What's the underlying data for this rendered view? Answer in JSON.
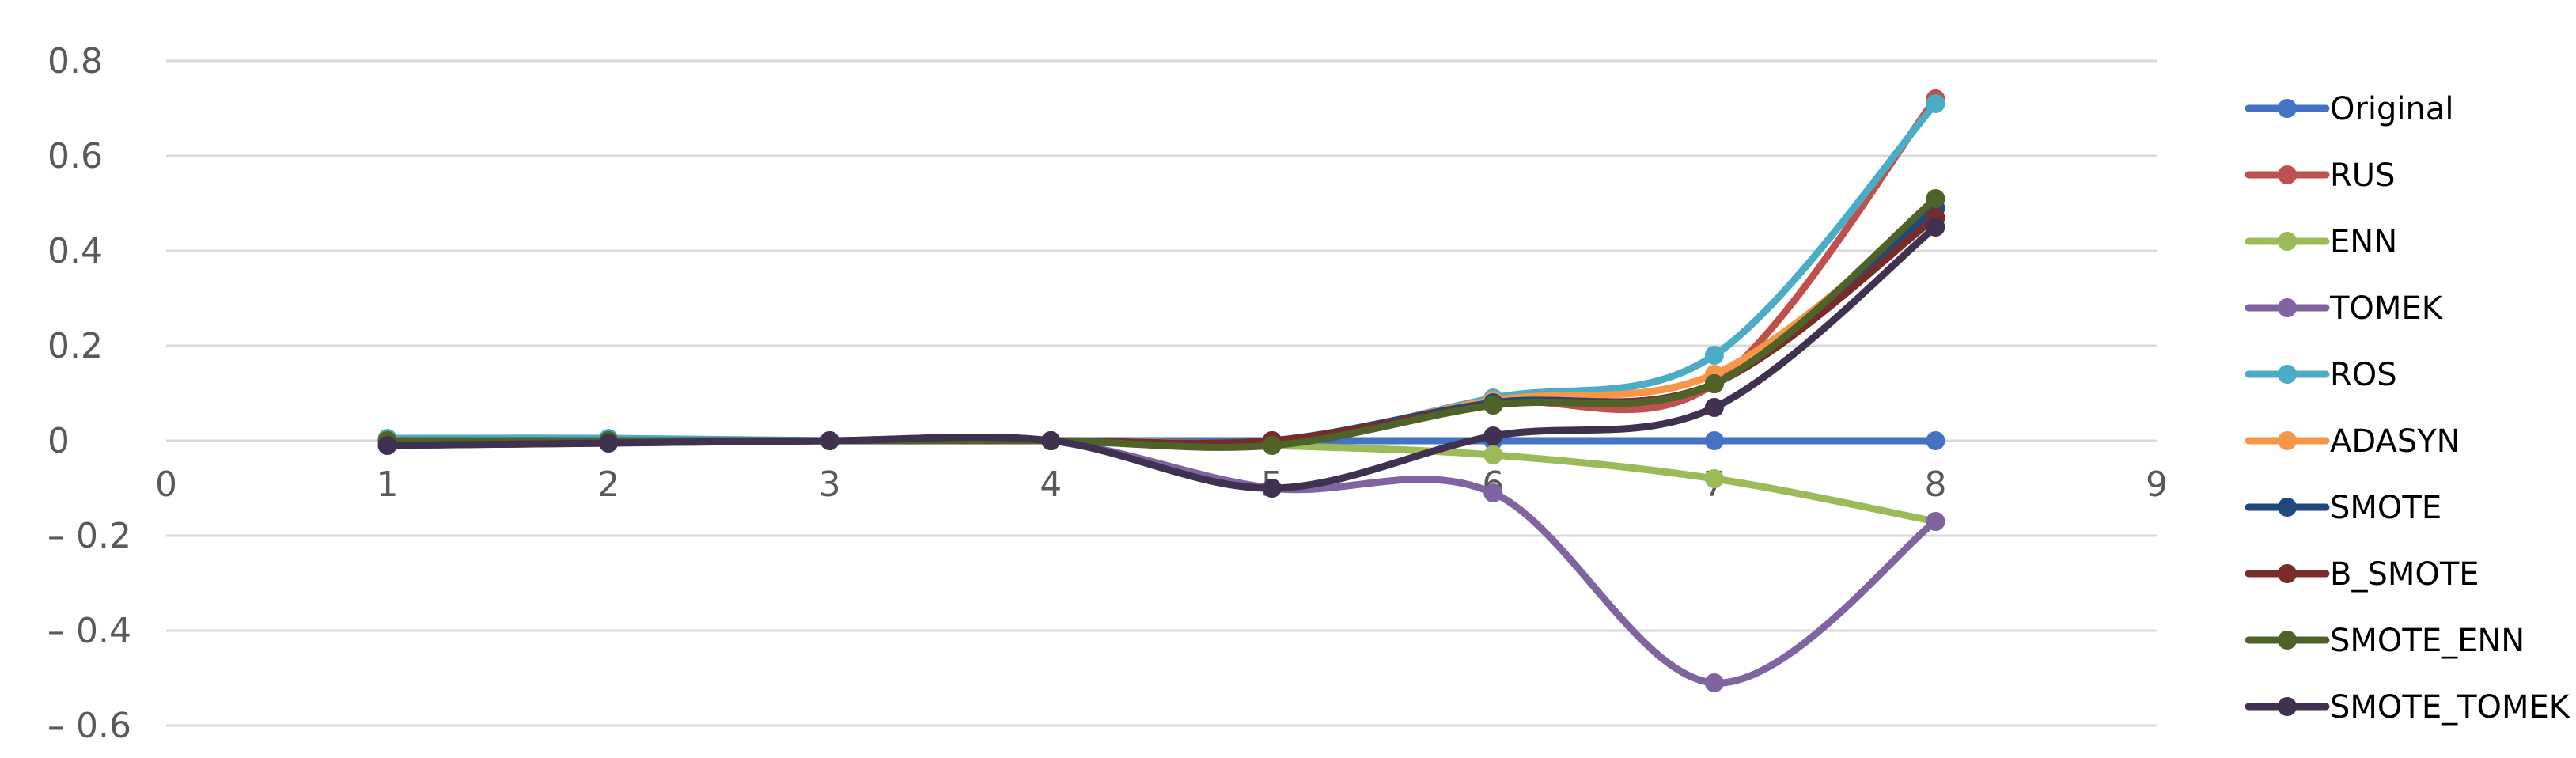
{
  "chart_data": {
    "type": "line",
    "smooth": true,
    "title": "",
    "xlabel": "",
    "ylabel": "",
    "xlim": [
      0,
      9
    ],
    "ylim": [
      -0.6,
      0.8
    ],
    "x_ticks": [
      0,
      1,
      2,
      3,
      4,
      5,
      6,
      7,
      8,
      9
    ],
    "y_ticks": [
      {
        "value": 0.8,
        "label": "0.8"
      },
      {
        "value": 0.6,
        "label": "0.6"
      },
      {
        "value": 0.4,
        "label": "0.4"
      },
      {
        "value": 0.2,
        "label": "0.2"
      },
      {
        "value": 0,
        "label": "0"
      },
      {
        "value": -0.2,
        "label": "– 0.2"
      },
      {
        "value": -0.4,
        "label": "– 0.4"
      },
      {
        "value": -0.6,
        "label": "– 0.6"
      }
    ],
    "grid": true,
    "legend_position": "right",
    "x": [
      1,
      2,
      3,
      4,
      5,
      6,
      7,
      8
    ],
    "series": [
      {
        "name": "Original",
        "color": "#4472C4",
        "values": [
          0,
          0,
          0,
          0,
          0,
          0,
          0,
          0
        ]
      },
      {
        "name": "RUS",
        "color": "#C0504D",
        "values": [
          0,
          0,
          0,
          0,
          0,
          0.08,
          0.12,
          0.72
        ]
      },
      {
        "name": "ENN",
        "color": "#9BBB59",
        "values": [
          0,
          0,
          0,
          0,
          -0.01,
          -0.03,
          -0.08,
          -0.17
        ]
      },
      {
        "name": "TOMEK",
        "color": "#8064A2",
        "values": [
          -0.01,
          -0.005,
          0,
          0,
          -0.1,
          -0.11,
          -0.51,
          -0.17
        ]
      },
      {
        "name": "ROS",
        "color": "#4BACC6",
        "values": [
          0.005,
          0.005,
          0,
          0,
          -0.005,
          0.09,
          0.18,
          0.71
        ]
      },
      {
        "name": "ADASYN",
        "color": "#F79646",
        "values": [
          0,
          0,
          0,
          0,
          -0.005,
          0.085,
          0.14,
          0.49
        ]
      },
      {
        "name": "SMOTE",
        "color": "#1F497D",
        "values": [
          0,
          0,
          0,
          0,
          0,
          0.08,
          0.12,
          0.49
        ]
      },
      {
        "name": "B_SMOTE",
        "color": "#772C2A",
        "values": [
          0,
          0,
          0,
          0,
          0,
          0.075,
          0.12,
          0.47
        ]
      },
      {
        "name": "SMOTE_ENN",
        "color": "#4F6228",
        "values": [
          0,
          0,
          0,
          0,
          -0.01,
          0.075,
          0.12,
          0.51
        ]
      },
      {
        "name": "SMOTE_TOMEK",
        "color": "#403151",
        "values": [
          -0.01,
          -0.005,
          0,
          0,
          -0.1,
          0.01,
          0.07,
          0.45
        ]
      }
    ]
  }
}
